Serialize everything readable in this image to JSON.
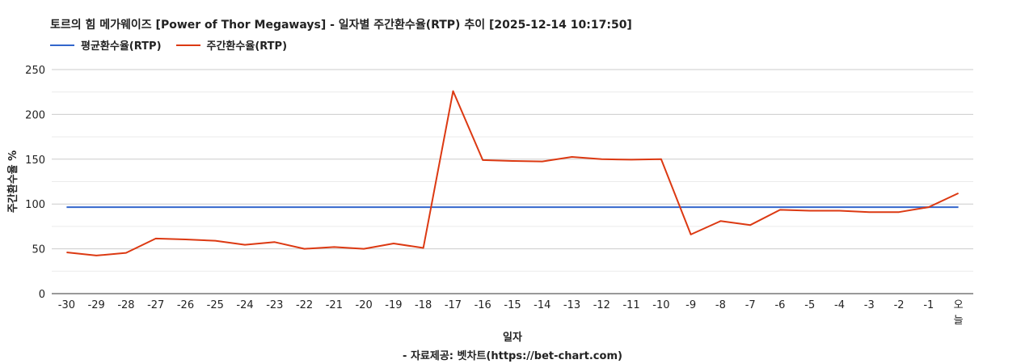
{
  "chart_data": {
    "type": "line",
    "title": "토르의 힘 메가웨이즈 [Power of Thor Megaways] - 일자별 주간환수율(RTP) 추이 [2025-12-14 10:17:50]",
    "xlabel": "일자",
    "ylabel": "주간환수율 %",
    "source": "- 자료제공: 벳차트(https://bet-chart.com)",
    "categories": [
      "-30",
      "-29",
      "-28",
      "-27",
      "-26",
      "-25",
      "-24",
      "-23",
      "-22",
      "-21",
      "-20",
      "-19",
      "-18",
      "-17",
      "-16",
      "-15",
      "-14",
      "-13",
      "-12",
      "-11",
      "-10",
      "-9",
      "-8",
      "-7",
      "-6",
      "-5",
      "-4",
      "-3",
      "-2",
      "-1",
      "오늘"
    ],
    "ylim": [
      0,
      250
    ],
    "yticks": [
      0,
      50,
      100,
      150,
      200,
      250
    ],
    "grid": true,
    "legend_position": "top-left",
    "series": [
      {
        "name": "평균환수율(RTP)",
        "color": "#3366cc",
        "values": [
          96.5,
          96.5,
          96.5,
          96.5,
          96.5,
          96.5,
          96.5,
          96.5,
          96.5,
          96.5,
          96.5,
          96.5,
          96.5,
          96.5,
          96.5,
          96.5,
          96.5,
          96.5,
          96.5,
          96.5,
          96.5,
          96.5,
          96.5,
          96.5,
          96.5,
          96.5,
          96.5,
          96.5,
          96.5,
          96.5,
          96.5
        ]
      },
      {
        "name": "주간환수율(RTP)",
        "color": "#dc3912",
        "values": [
          46,
          42.5,
          45.5,
          61.5,
          60.5,
          59,
          54.5,
          57.5,
          50,
          52,
          50,
          56,
          51,
          226,
          149,
          148,
          147.5,
          152.5,
          150,
          149.5,
          150,
          66,
          81,
          76.5,
          93.5,
          92.5,
          92.5,
          91,
          91,
          96.5,
          112
        ]
      }
    ]
  }
}
